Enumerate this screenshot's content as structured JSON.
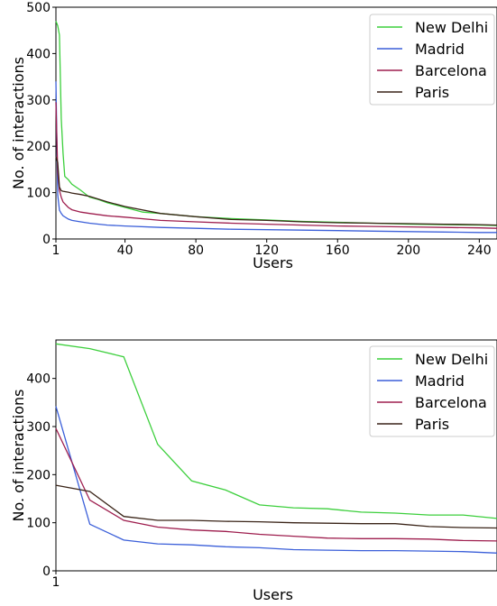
{
  "chart_data": [
    {
      "type": "line",
      "xlabel": "Users",
      "ylabel": "No. of interactions",
      "xlim": [
        1,
        250
      ],
      "ylim": [
        0,
        500
      ],
      "xticks": [
        1,
        40,
        80,
        120,
        160,
        200,
        240
      ],
      "yticks": [
        0,
        100,
        200,
        300,
        400,
        500
      ],
      "legend_position": "top-right",
      "grid": false,
      "series": [
        {
          "name": "New Delhi",
          "color": "#3ccf3c",
          "x": [
            1,
            2,
            3,
            4,
            5,
            6,
            8,
            10,
            15,
            20,
            25,
            30,
            40,
            50,
            60,
            80,
            100,
            120,
            140,
            160,
            180,
            200,
            220,
            240,
            250
          ],
          "y": [
            470,
            460,
            440,
            260,
            185,
            135,
            128,
            118,
            105,
            90,
            85,
            78,
            68,
            58,
            55,
            48,
            44,
            41,
            38,
            36,
            34,
            32,
            31,
            30,
            29
          ]
        },
        {
          "name": "Madrid",
          "color": "#3b5fd9",
          "x": [
            1,
            2,
            3,
            4,
            5,
            8,
            10,
            15,
            20,
            30,
            40,
            60,
            80,
            100,
            120,
            140,
            160,
            180,
            200,
            220,
            240,
            250
          ],
          "y": [
            340,
            95,
            62,
            55,
            50,
            43,
            40,
            37,
            34,
            30,
            28,
            25,
            23,
            21,
            20,
            19,
            18,
            17,
            16,
            15,
            14,
            14
          ]
        },
        {
          "name": "Barcelona",
          "color": "#9e1e4e",
          "x": [
            1,
            2,
            3,
            4,
            5,
            8,
            10,
            15,
            20,
            30,
            40,
            60,
            80,
            100,
            120,
            140,
            160,
            180,
            200,
            220,
            240,
            250
          ],
          "y": [
            295,
            145,
            105,
            90,
            80,
            68,
            63,
            58,
            55,
            50,
            47,
            40,
            37,
            34,
            32,
            30,
            28,
            27,
            26,
            25,
            24,
            23
          ]
        },
        {
          "name": "Paris",
          "color": "#3a2418",
          "x": [
            1,
            2,
            3,
            4,
            5,
            8,
            10,
            15,
            20,
            30,
            40,
            60,
            80,
            100,
            120,
            140,
            160,
            180,
            200,
            220,
            240,
            250
          ],
          "y": [
            178,
            165,
            112,
            104,
            103,
            101,
            99,
            96,
            92,
            80,
            70,
            55,
            48,
            42,
            40,
            37,
            35,
            34,
            33,
            32,
            31,
            30
          ]
        }
      ]
    },
    {
      "type": "line",
      "xlabel": "Users",
      "ylabel": "No. of interactions",
      "xlim": [
        1,
        14
      ],
      "ylim": [
        0,
        480
      ],
      "xticks": [
        1
      ],
      "yticks": [
        0,
        100,
        200,
        300,
        400
      ],
      "legend_position": "top-right",
      "grid": false,
      "series": [
        {
          "name": "New Delhi",
          "color": "#3ccf3c",
          "x": [
            1,
            2,
            3,
            4,
            5,
            6,
            7,
            8,
            9,
            10,
            11,
            12,
            13,
            14
          ],
          "y": [
            472,
            462,
            445,
            263,
            187,
            168,
            137,
            131,
            129,
            122,
            120,
            116,
            116,
            109
          ]
        },
        {
          "name": "Madrid",
          "color": "#3b5fd9",
          "x": [
            1,
            2,
            3,
            4,
            5,
            6,
            7,
            8,
            9,
            10,
            11,
            12,
            13,
            14
          ],
          "y": [
            342,
            97,
            64,
            56,
            54,
            50,
            48,
            44,
            43,
            42,
            42,
            41,
            40,
            37
          ]
        },
        {
          "name": "Barcelona",
          "color": "#9e1e4e",
          "x": [
            1,
            2,
            3,
            4,
            5,
            6,
            7,
            8,
            9,
            10,
            11,
            12,
            13,
            14
          ],
          "y": [
            296,
            147,
            105,
            91,
            85,
            82,
            76,
            72,
            68,
            67,
            67,
            66,
            63,
            62
          ]
        },
        {
          "name": "Paris",
          "color": "#3a2418",
          "x": [
            1,
            2,
            3,
            4,
            5,
            6,
            7,
            8,
            9,
            10,
            11,
            12,
            13,
            14
          ],
          "y": [
            178,
            165,
            113,
            105,
            105,
            103,
            102,
            100,
            99,
            98,
            98,
            92,
            90,
            89
          ]
        }
      ]
    }
  ]
}
